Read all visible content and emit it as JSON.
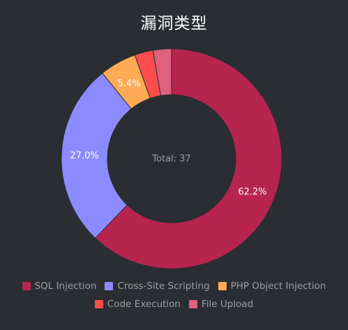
{
  "chart_data": {
    "type": "pie",
    "variant": "donut",
    "title": "漏洞类型",
    "center_label": "Total: 37",
    "categories": [
      "SQL Injection",
      "Cross-Site Scripting",
      "PHP Object Injection",
      "Code Execution",
      "File Upload"
    ],
    "values": [
      23,
      10,
      2,
      1,
      1
    ],
    "percent_labels": [
      "62.2%",
      "27.0%",
      "5.4%",
      "",
      ""
    ],
    "colors": [
      "#b72450",
      "#8b8bff",
      "#ffaa55",
      "#ff4d4d",
      "#e06080"
    ],
    "legend_position": "bottom"
  }
}
